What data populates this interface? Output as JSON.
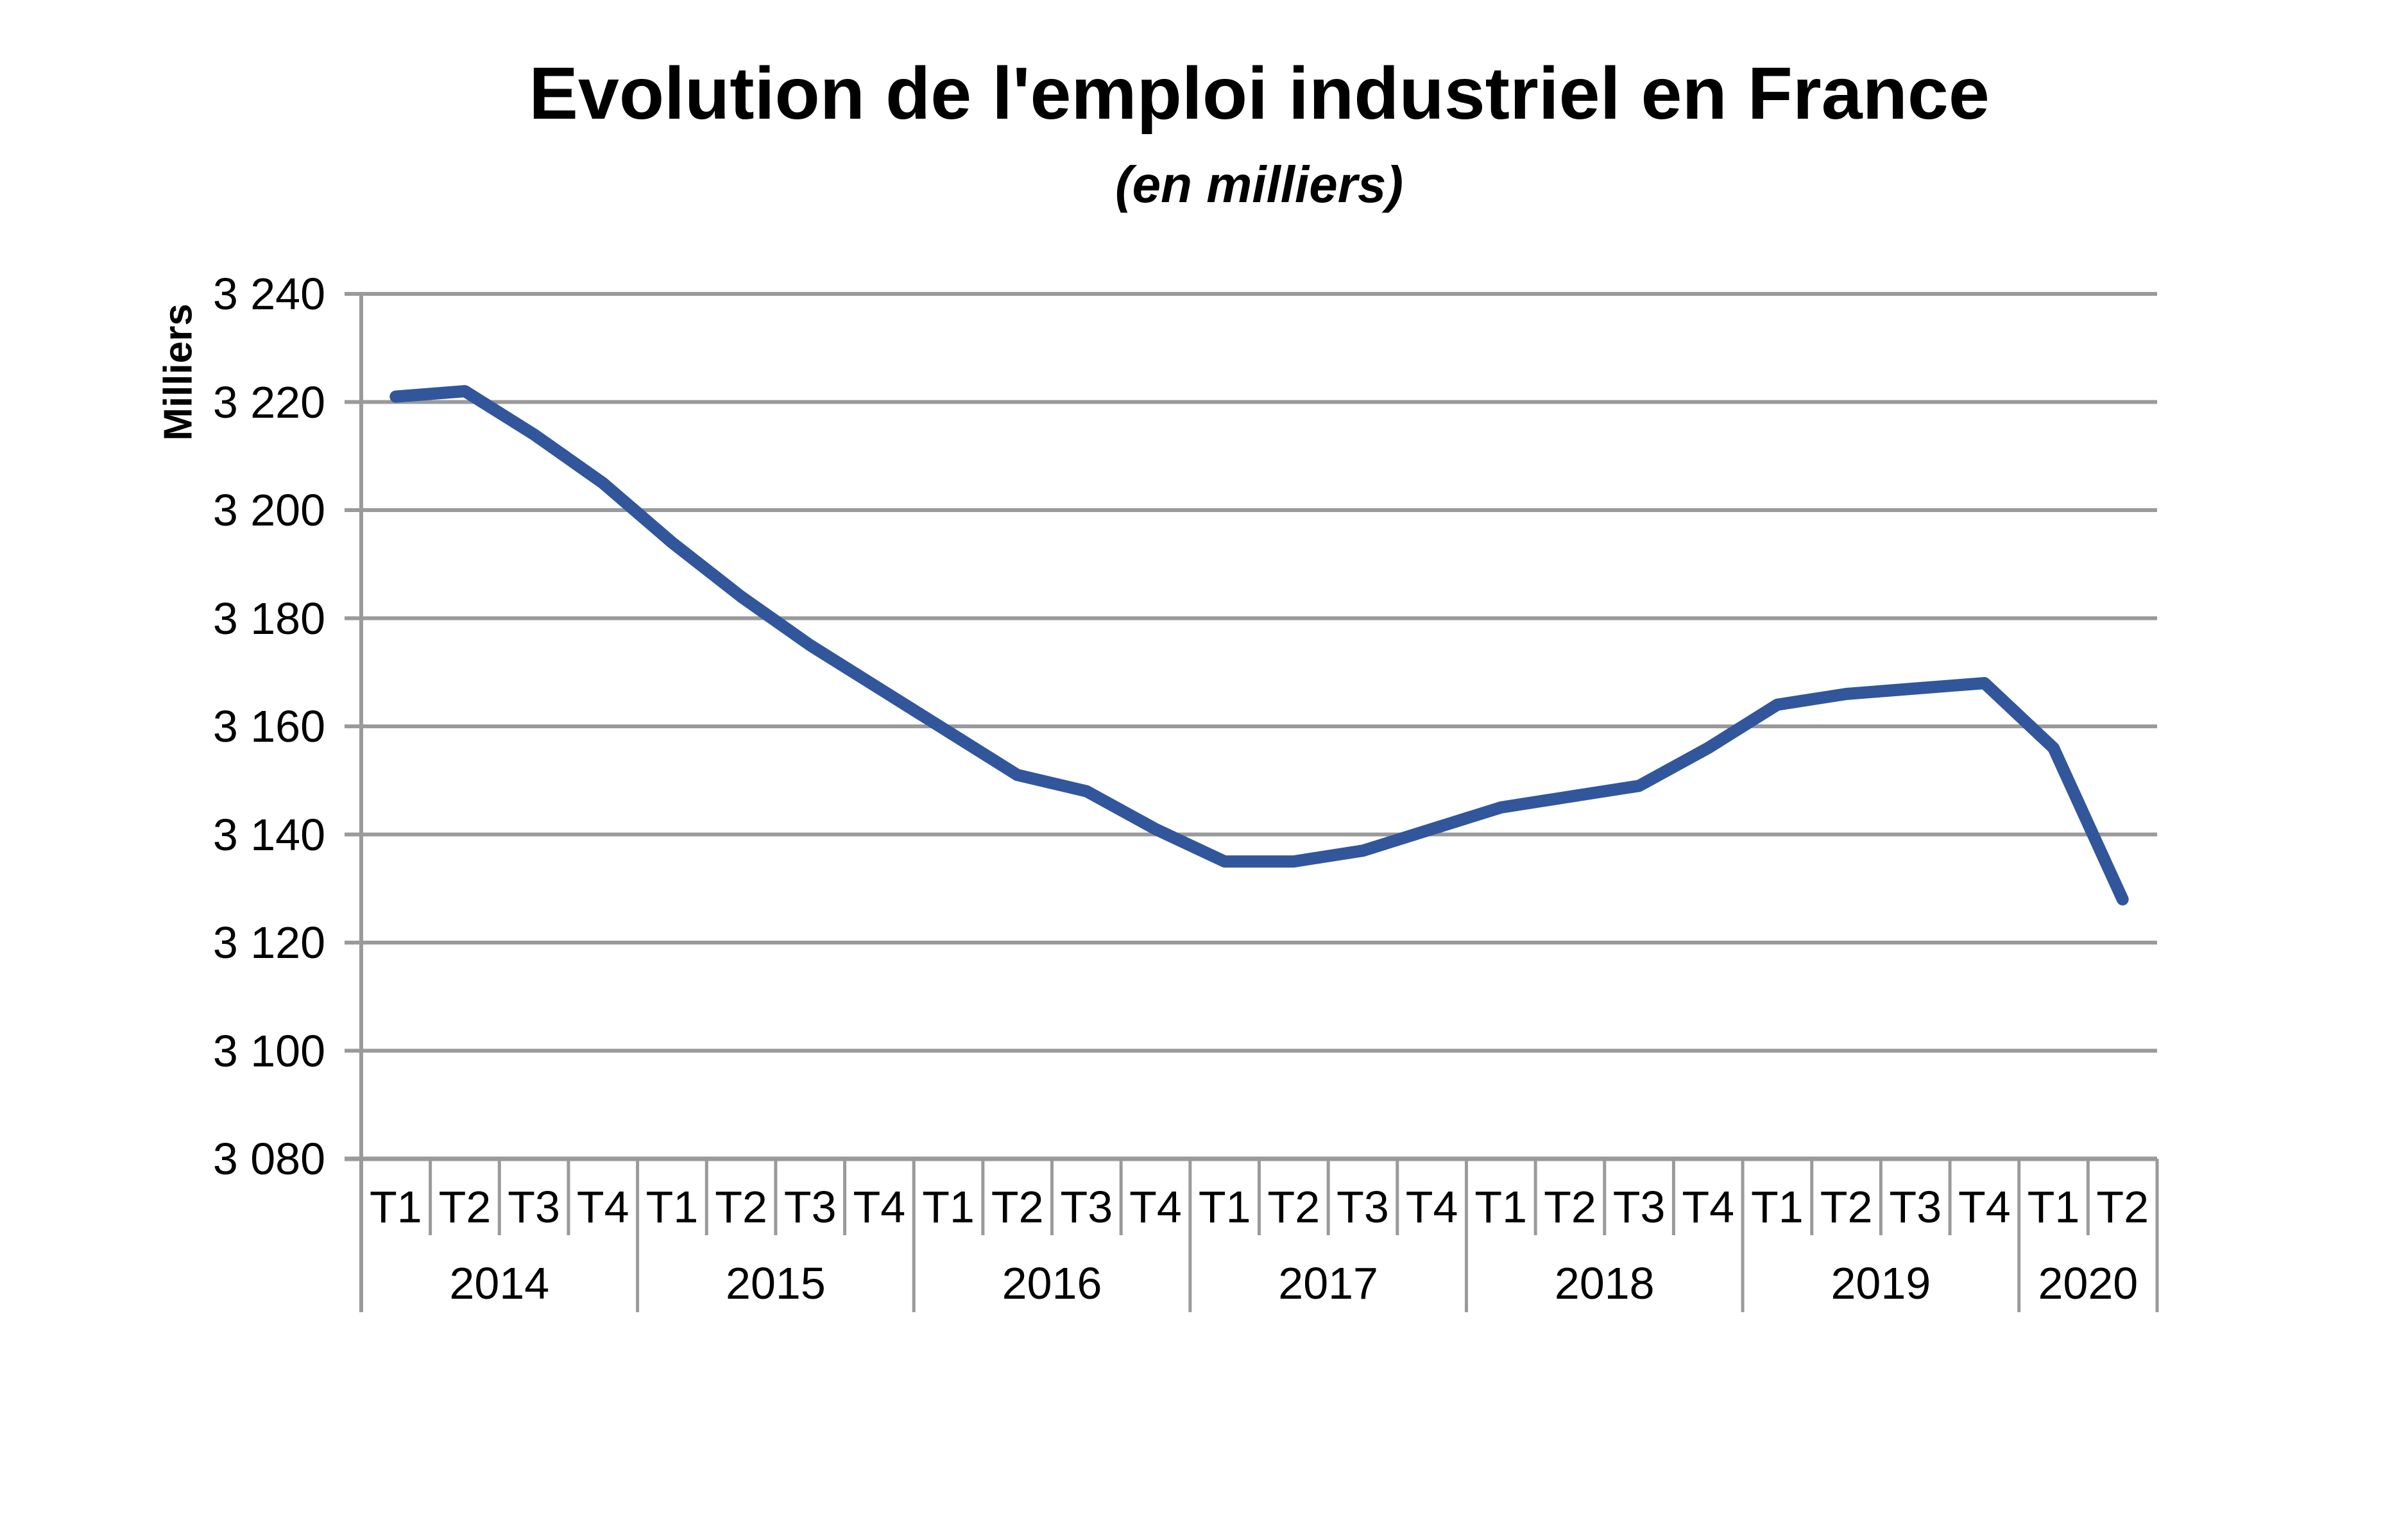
{
  "chart_data": {
    "type": "line",
    "title": "Evolution de l'emploi industriel en France",
    "subtitle": "(en milliers)",
    "ylabel": "Milliers",
    "legend": "none",
    "grid": "horizontal",
    "series_color": "#31569B",
    "gridline_color": "#9A9A9A",
    "text_color": "#000000",
    "background_color": "#FFFFFF",
    "ylim": [
      3080,
      3240
    ],
    "ytick_step": 20,
    "ytick_labels": [
      "3 080",
      "3 100",
      "3 120",
      "3 140",
      "3 160",
      "3 180",
      "3 200",
      "3 220",
      "3 240"
    ],
    "x_quarter_labels": [
      "T1",
      "T2",
      "T3",
      "T4",
      "T1",
      "T2",
      "T3",
      "T4",
      "T1",
      "T2",
      "T3",
      "T4",
      "T1",
      "T2",
      "T3",
      "T4",
      "T1",
      "T2",
      "T3",
      "T4",
      "T1",
      "T2",
      "T3",
      "T4",
      "T1",
      "T2"
    ],
    "year_groups": [
      {
        "label": "2014",
        "quarters": 4
      },
      {
        "label": "2015",
        "quarters": 4
      },
      {
        "label": "2016",
        "quarters": 4
      },
      {
        "label": "2017",
        "quarters": 4
      },
      {
        "label": "2018",
        "quarters": 4
      },
      {
        "label": "2019",
        "quarters": 4
      },
      {
        "label": "2020",
        "quarters": 2
      }
    ],
    "values": [
      3221,
      3222,
      3214,
      3205,
      3194,
      3184,
      3175,
      3167,
      3159,
      3151,
      3148,
      3141,
      3135,
      3135,
      3137,
      3141,
      3145,
      3147,
      3149,
      3156,
      3164,
      3166,
      3167,
      3168,
      3156,
      3128
    ]
  }
}
